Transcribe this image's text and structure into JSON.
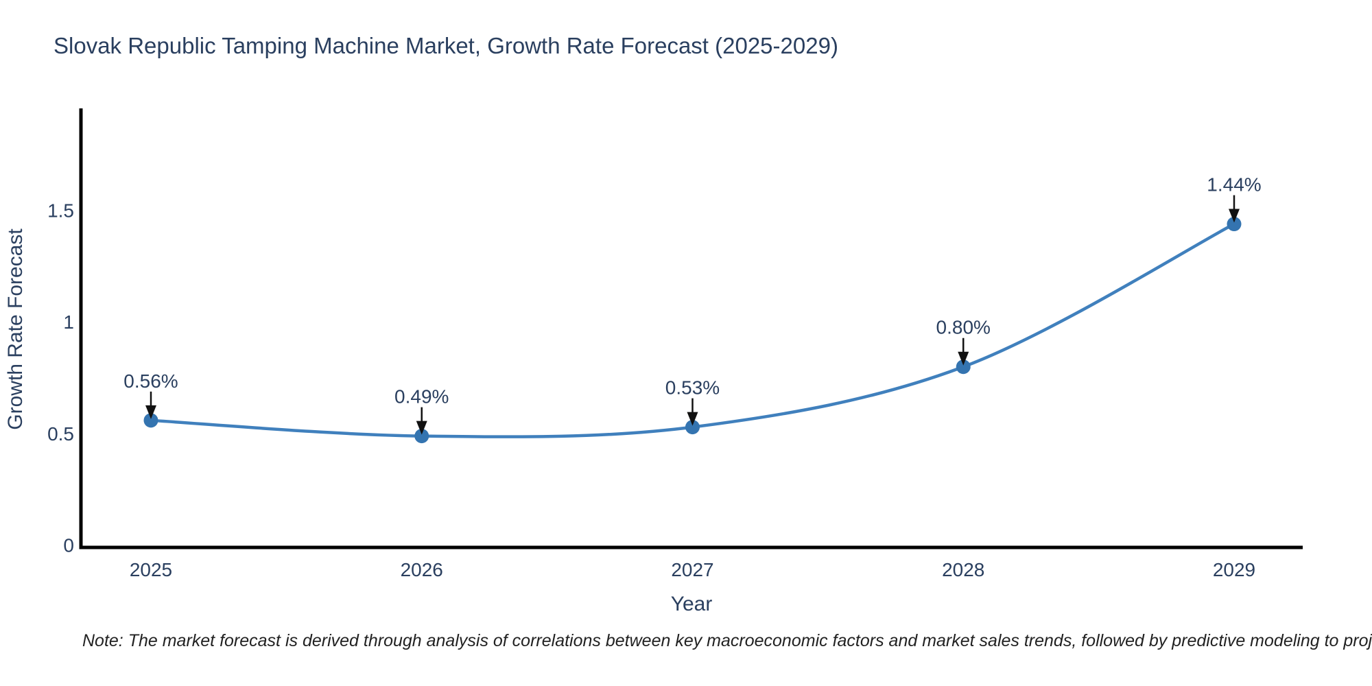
{
  "title": "Slovak Republic Tamping Machine Market, Growth Rate Forecast (2025-2029)",
  "note": "Note: The market forecast is derived through analysis of correlations between key macroeconomic factors and market sales trends, followed by predictive modeling to project future sales",
  "chart_data": {
    "type": "line",
    "title": "Slovak Republic Tamping Machine Market, Growth Rate Forecast (2025-2029)",
    "xlabel": "Year",
    "ylabel": "Growth Rate Forecast",
    "categories": [
      "2025",
      "2026",
      "2027",
      "2028",
      "2029"
    ],
    "values": [
      0.56,
      0.49,
      0.53,
      0.8,
      1.44
    ],
    "point_labels": [
      "0.56%",
      "0.49%",
      "0.53%",
      "0.80%",
      "1.44%"
    ],
    "yticks": [
      0,
      0.5,
      1,
      1.5
    ],
    "ylim": [
      0,
      1.95
    ],
    "grid": false,
    "legend_position": "none",
    "line_shape": "spline",
    "colors": {
      "line": "#4080bd",
      "marker": "#3474b0",
      "axis": "#000000",
      "text": "#2a3f5f",
      "arrow": "#111111",
      "background": "#ffffff"
    }
  }
}
